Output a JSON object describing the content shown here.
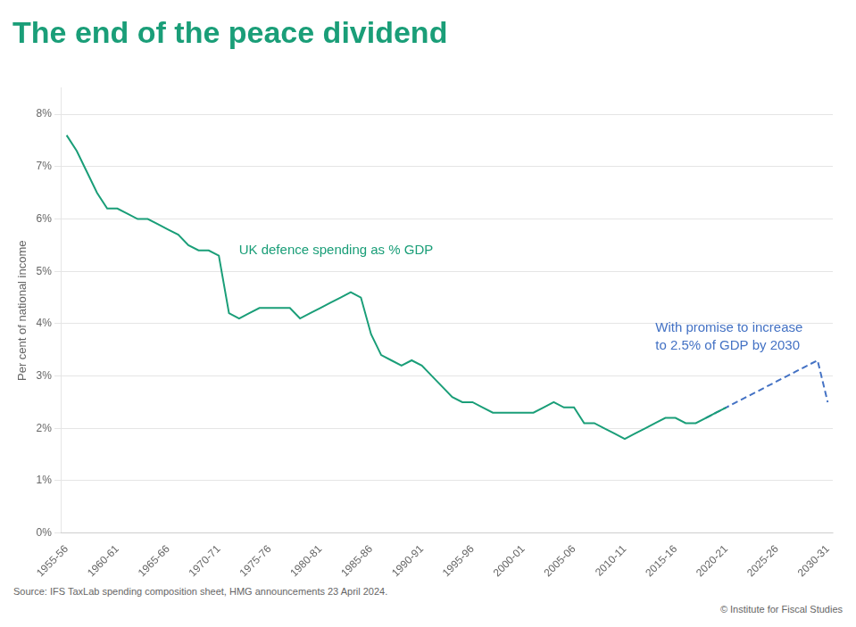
{
  "chart_data": {
    "type": "line",
    "title": "The end of the peace dividend",
    "title_color": "#1a9e78",
    "ylabel": "Per cent of national income",
    "source": "Source: IFS TaxLab spending composition sheet, HMG announcements 23 April 2024.",
    "copyright": "© Institute for Fiscal Studies",
    "annotations": [
      {
        "text": "UK defence spending as % GDP",
        "color": "#1a9e78"
      },
      {
        "text": "With promise to increase\nto 2.5% of GDP by 2030",
        "color": "#4472c4"
      }
    ],
    "categories": [
      "1955-56",
      null,
      null,
      null,
      null,
      "1960-61",
      null,
      null,
      null,
      null,
      "1965-66",
      null,
      null,
      null,
      null,
      "1970-71",
      null,
      null,
      null,
      null,
      "1975-76",
      null,
      null,
      null,
      null,
      "1980-81",
      null,
      null,
      null,
      null,
      "1985-86",
      null,
      null,
      null,
      null,
      "1990-91",
      null,
      null,
      null,
      null,
      "1995-96",
      null,
      null,
      null,
      null,
      "2000-01",
      null,
      null,
      null,
      null,
      "2005-06",
      null,
      null,
      null,
      null,
      "2010-11",
      null,
      null,
      null,
      null,
      "2015-16",
      null,
      null,
      null,
      null,
      "2020-21",
      null,
      null,
      null,
      null,
      "2025-26",
      null,
      null,
      null,
      null,
      "2030-31"
    ],
    "series": [
      {
        "color": "#1a9e78",
        "line_style": "solid",
        "values": [
          0.076,
          0.073,
          0.069,
          0.065,
          0.062,
          0.062,
          0.061,
          0.06,
          0.06,
          0.059,
          0.058,
          0.057,
          0.055,
          0.054,
          0.054,
          0.053,
          0.042,
          0.041,
          0.042,
          0.043,
          0.043,
          0.043,
          0.043,
          0.041,
          0.042,
          0.043,
          0.044,
          0.045,
          0.046,
          0.045,
          0.038,
          0.034,
          0.033,
          0.032,
          0.033,
          0.032,
          0.03,
          0.028,
          0.026,
          0.025,
          0.025,
          0.024,
          0.023,
          0.023,
          0.023,
          0.023,
          0.023,
          0.024,
          0.025,
          0.024,
          0.024,
          0.021,
          0.021,
          0.02,
          0.019,
          0.018,
          0.019,
          0.02,
          0.021,
          0.022,
          0.022,
          0.021,
          0.021,
          0.022,
          0.023,
          0.024,
          null,
          null,
          null,
          null,
          null,
          null,
          null,
          null,
          null,
          null
        ]
      },
      {
        "color": "#4472c4",
        "line_style": "dashed",
        "values": [
          null,
          null,
          null,
          null,
          null,
          null,
          null,
          null,
          null,
          null,
          null,
          null,
          null,
          null,
          null,
          null,
          null,
          null,
          null,
          null,
          null,
          null,
          null,
          null,
          null,
          null,
          null,
          null,
          null,
          null,
          null,
          null,
          null,
          null,
          null,
          null,
          null,
          null,
          null,
          null,
          null,
          null,
          null,
          null,
          null,
          null,
          null,
          null,
          null,
          null,
          null,
          null,
          null,
          null,
          null,
          null,
          null,
          null,
          null,
          null,
          null,
          null,
          null,
          0.022,
          0.023,
          0.024,
          0.025,
          0.026,
          0.027,
          0.028,
          0.029,
          0.03,
          0.031,
          0.032,
          0.033,
          0.025
        ]
      }
    ],
    "ylim": [
      0,
      0.085
    ],
    "yticks": [
      {
        "value": 0,
        "label": "0%"
      },
      {
        "value": 0.01,
        "label": "1%"
      },
      {
        "value": 0.02,
        "label": "2%"
      },
      {
        "value": 0.03,
        "label": "3%"
      },
      {
        "value": 0.04,
        "label": "4%"
      },
      {
        "value": 0.05,
        "label": "5%"
      },
      {
        "value": 0.06,
        "label": "6%"
      },
      {
        "value": 0.07,
        "label": "7%"
      },
      {
        "value": 0.08,
        "label": "8%"
      }
    ],
    "grid": "y"
  }
}
